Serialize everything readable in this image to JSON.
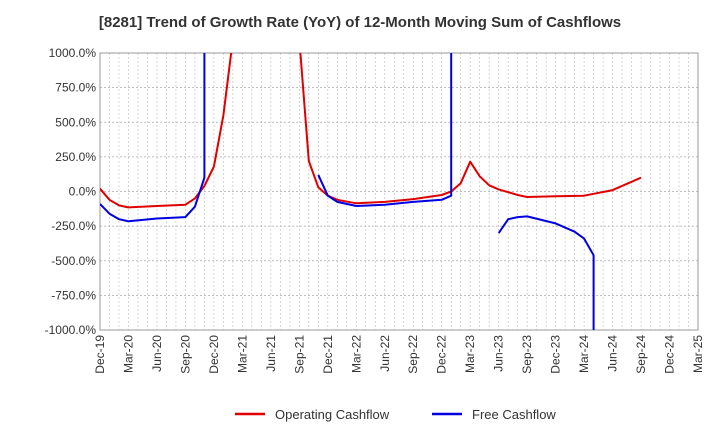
{
  "chart_data": {
    "type": "line",
    "title": "[8281]  Trend of Growth Rate (YoY) of 12-Month Moving Sum of Cashflows",
    "ylim": [
      -1000,
      1000
    ],
    "y_ticks": [
      1000,
      750,
      500,
      250,
      0,
      -250,
      -500,
      -750,
      -1000
    ],
    "y_tick_labels": [
      "1000.0%",
      "750.0%",
      "500.0%",
      "250.0%",
      "0.0%",
      "-250.0%",
      "-500.0%",
      "-750.0%",
      "-1000.0%"
    ],
    "x_tick_labels": [
      "Dec-19",
      "Mar-20",
      "Jun-20",
      "Sep-20",
      "Dec-20",
      "Mar-21",
      "Jun-21",
      "Sep-21",
      "Dec-21",
      "Mar-22",
      "Jun-22",
      "Sep-22",
      "Dec-22",
      "Mar-23",
      "Jun-23",
      "Sep-23",
      "Dec-23",
      "Mar-24",
      "Jun-24",
      "Sep-24",
      "Dec-24",
      "Mar-25"
    ],
    "grid": true,
    "legend_position": "bottom",
    "series": [
      {
        "name": "Operating Cashflow",
        "color": "#e00000",
        "points": [
          [
            "Dec-19",
            20
          ],
          [
            "Jan-20",
            -60
          ],
          [
            "Feb-20",
            -100
          ],
          [
            "Mar-20",
            -115
          ],
          [
            "Jun-20",
            -105
          ],
          [
            "Sep-20",
            -95
          ],
          [
            "Oct-20",
            -50
          ],
          [
            "Nov-20",
            40
          ],
          [
            "Dec-20",
            180
          ],
          [
            "Jan-21",
            550
          ],
          [
            "Feb-21",
            1100
          ],
          null,
          [
            "Sep-21",
            1100
          ],
          [
            "Oct-21",
            220
          ],
          [
            "Nov-21",
            30
          ],
          [
            "Dec-21",
            -30
          ],
          [
            "Jan-22",
            -60
          ],
          [
            "Mar-22",
            -85
          ],
          [
            "Jun-22",
            -75
          ],
          [
            "Sep-22",
            -55
          ],
          [
            "Dec-22",
            -25
          ],
          [
            "Jan-23",
            0
          ],
          [
            "Feb-23",
            60
          ],
          [
            "Mar-23",
            215
          ],
          [
            "Apr-23",
            110
          ],
          [
            "May-23",
            45
          ],
          [
            "Jun-23",
            15
          ],
          [
            "Jul-23",
            -5
          ],
          [
            "Aug-23",
            -25
          ],
          [
            "Sep-23",
            -40
          ],
          [
            "Dec-23",
            -35
          ],
          [
            "Mar-24",
            -30
          ],
          [
            "Jun-24",
            10
          ],
          [
            "Sep-24",
            100
          ]
        ]
      },
      {
        "name": "Free Cashflow",
        "color": "#0000e0",
        "points": [
          [
            "Dec-19",
            -90
          ],
          [
            "Jan-20",
            -160
          ],
          [
            "Feb-20",
            -200
          ],
          [
            "Mar-20",
            -215
          ],
          [
            "Jun-20",
            -195
          ],
          [
            "Sep-20",
            -185
          ],
          [
            "Oct-20",
            -110
          ],
          [
            "Nov-20",
            100
          ],
          [
            "Nov-20",
            1100
          ],
          null,
          [
            "Nov-21",
            120
          ],
          [
            "Dec-21",
            -30
          ],
          [
            "Jan-22",
            -75
          ],
          [
            "Mar-22",
            -105
          ],
          [
            "Jun-22",
            -95
          ],
          [
            "Sep-22",
            -75
          ],
          [
            "Dec-22",
            -60
          ],
          [
            "Jan-23",
            -30
          ],
          [
            "Jan-23",
            1100
          ],
          null,
          [
            "Jun-23",
            -300
          ],
          [
            "Jul-23",
            -200
          ],
          [
            "Aug-23",
            -185
          ],
          [
            "Sep-23",
            -180
          ],
          [
            "Dec-23",
            -230
          ],
          [
            "Feb-24",
            -290
          ],
          [
            "Mar-24",
            -340
          ],
          [
            "Apr-24",
            -460
          ],
          [
            "Apr-24",
            -1100
          ]
        ]
      }
    ]
  }
}
